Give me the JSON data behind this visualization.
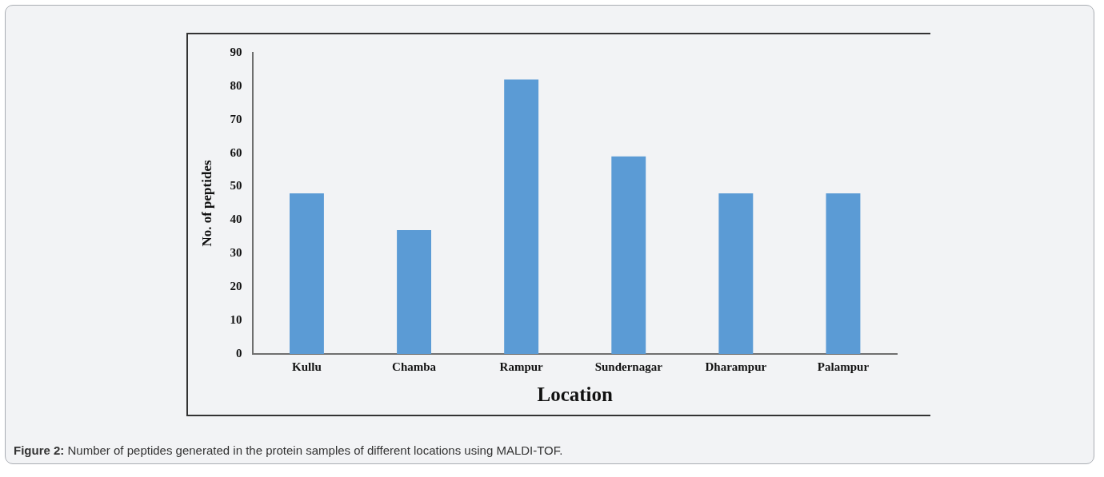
{
  "chart_data": {
    "type": "bar",
    "categories": [
      "Kullu",
      "Chamba",
      "Rampur",
      "Sundernagar",
      "Dharampur",
      "Palampur"
    ],
    "values": [
      48,
      37,
      82,
      59,
      48,
      48
    ],
    "color": "#5b9bd5",
    "xlabel": "Location",
    "ylabel": "No. of peptides",
    "ylim": [
      0,
      90
    ],
    "yticks": [
      0,
      10,
      20,
      30,
      40,
      50,
      60,
      70,
      80,
      90
    ],
    "grid": false,
    "legend": false,
    "annotations": [
      "Figure 2: Number of peptides generated in the protein samples of different locations using MALDI-TOF."
    ]
  }
}
